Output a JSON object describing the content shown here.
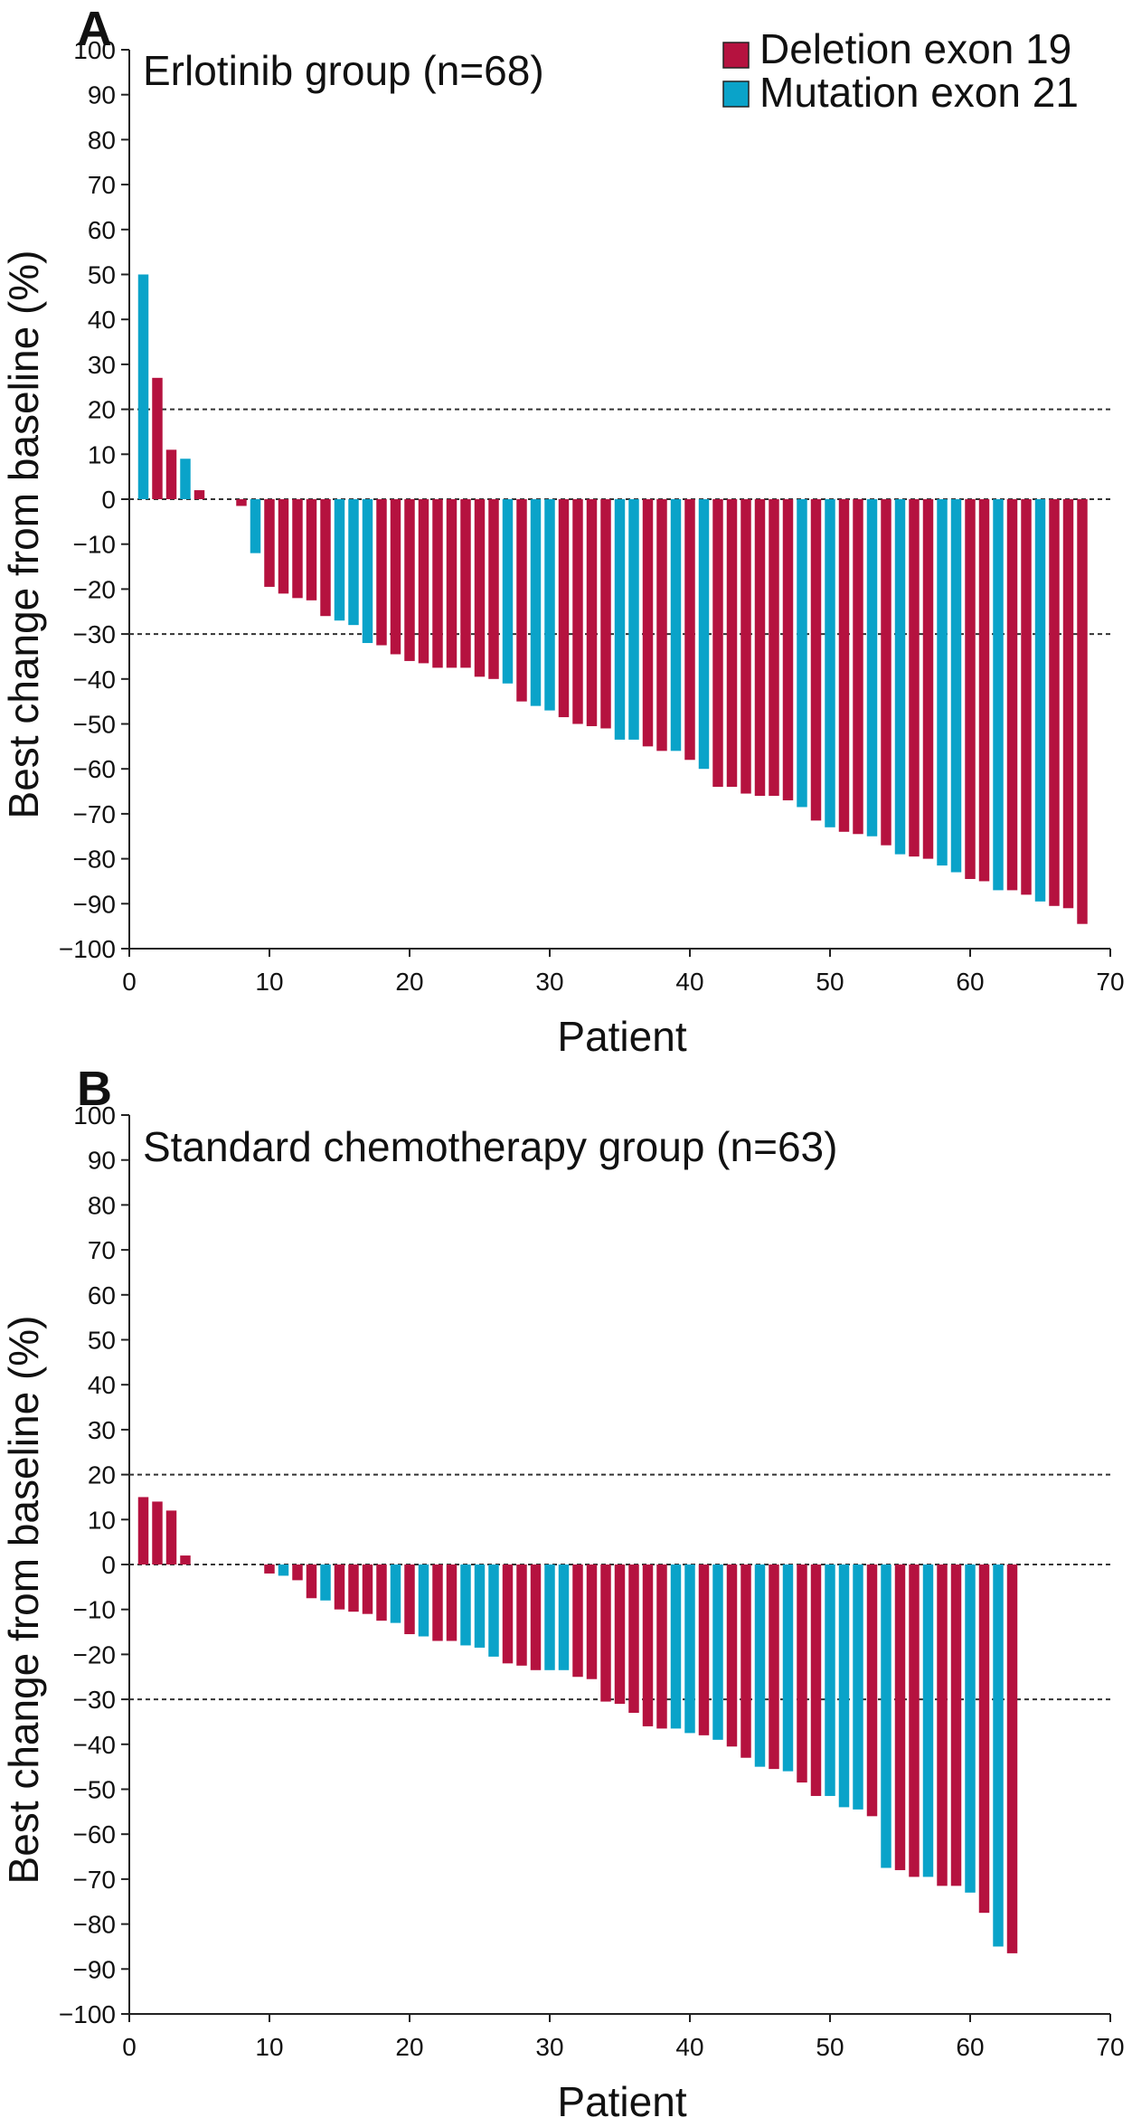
{
  "colors": {
    "deletion": "#b5123f",
    "mutation": "#0aa3c9",
    "axis": "#222222",
    "ref_line": "#333333"
  },
  "legend": {
    "position": "top-right",
    "items": [
      {
        "label": "Deletion exon 19",
        "color": "#b5123f"
      },
      {
        "label": "Mutation exon 21",
        "color": "#0aa3c9"
      }
    ]
  },
  "chart_data": [
    {
      "type": "bar",
      "panel_label": "A",
      "title": "Erlotinib group (n=68)",
      "xlabel": "Patient",
      "ylabel": "Best change from baseline (%)",
      "xlim": [
        0,
        70
      ],
      "ylim": [
        -100,
        100
      ],
      "xticks": [
        0,
        10,
        20,
        30,
        40,
        50,
        60,
        70
      ],
      "xtick_labels": [
        "0",
        "10",
        "20",
        "30",
        "40",
        "50",
        "60",
        "70"
      ],
      "yticks": [
        100,
        90,
        80,
        70,
        60,
        50,
        40,
        30,
        20,
        10,
        0,
        -10,
        -20,
        -30,
        -40,
        -50,
        -60,
        -70,
        -80,
        -90,
        -100
      ],
      "ytick_labels": [
        "100",
        "90",
        "80",
        "70",
        "60",
        "50",
        "40",
        "30",
        "20",
        "10",
        "0",
        "-10",
        "-20",
        "-30",
        "-40",
        "-50",
        "-60",
        "-70",
        "-80",
        "-90",
        "-100"
      ],
      "reference_lines": [
        20,
        0,
        -30
      ],
      "grid": false,
      "x": [
        1,
        2,
        3,
        4,
        5,
        6,
        7,
        8,
        9,
        10,
        11,
        12,
        13,
        14,
        15,
        16,
        17,
        18,
        19,
        20,
        21,
        22,
        23,
        24,
        25,
        26,
        27,
        28,
        29,
        30,
        31,
        32,
        33,
        34,
        35,
        36,
        37,
        38,
        39,
        40,
        41,
        42,
        43,
        44,
        45,
        46,
        47,
        48,
        49,
        50,
        51,
        52,
        53,
        54,
        55,
        56,
        57,
        58,
        59,
        60,
        61,
        62,
        63,
        64,
        65,
        66,
        67,
        68
      ],
      "values": [
        50,
        27,
        11,
        9,
        2,
        0,
        0,
        -1.5,
        -12,
        -19.5,
        -21,
        -22,
        -22.5,
        -26,
        -27,
        -28,
        -32,
        -32.5,
        -34.5,
        -36,
        -36.5,
        -37.5,
        -37.5,
        -37.5,
        -39.5,
        -40,
        -41,
        -45,
        -46,
        -47,
        -48.5,
        -50,
        -50.5,
        -51,
        -53.5,
        -53.5,
        -55,
        -56,
        -56,
        -58,
        -60,
        -64,
        -64,
        -65.5,
        -66,
        -66,
        -67,
        -68.5,
        -71.5,
        -73,
        -74,
        -74.5,
        -75,
        -77,
        -79,
        -79.5,
        -80,
        -81.5,
        -83,
        -84.5,
        -85,
        -87,
        -87,
        -88,
        -89.5,
        -90.5,
        -91,
        -94.5
      ],
      "groups": [
        "M",
        "D",
        "D",
        "M",
        "D",
        "D",
        "D",
        "D",
        "M",
        "D",
        "D",
        "D",
        "D",
        "D",
        "M",
        "M",
        "M",
        "D",
        "D",
        "D",
        "D",
        "D",
        "D",
        "D",
        "D",
        "D",
        "M",
        "D",
        "M",
        "M",
        "D",
        "D",
        "D",
        "D",
        "M",
        "M",
        "D",
        "D",
        "M",
        "D",
        "M",
        "D",
        "D",
        "D",
        "D",
        "D",
        "D",
        "M",
        "D",
        "M",
        "D",
        "D",
        "M",
        "D",
        "M",
        "D",
        "D",
        "M",
        "M",
        "D",
        "D",
        "M",
        "D",
        "D",
        "M",
        "D",
        "D",
        "D"
      ]
    },
    {
      "type": "bar",
      "panel_label": "B",
      "title": "Standard chemotherapy group (n=63)",
      "xlabel": "Patient",
      "ylabel": "Best change from baseline (%)",
      "xlim": [
        0,
        70
      ],
      "ylim": [
        -100,
        100
      ],
      "xticks": [
        0,
        10,
        20,
        30,
        40,
        50,
        60,
        70
      ],
      "xtick_labels": [
        "0",
        "10",
        "20",
        "30",
        "40",
        "50",
        "60",
        "70"
      ],
      "yticks": [
        100,
        90,
        80,
        70,
        60,
        50,
        40,
        30,
        20,
        10,
        0,
        -10,
        -20,
        -30,
        -40,
        -50,
        -60,
        -70,
        -80,
        -90,
        -100
      ],
      "ytick_labels": [
        "100",
        "90",
        "80",
        "70",
        "60",
        "50",
        "40",
        "30",
        "20",
        "10",
        "0",
        "-10",
        "-20",
        "-30",
        "-40",
        "-50",
        "-60",
        "-70",
        "-80",
        "-90",
        "-100"
      ],
      "reference_lines": [
        20,
        0,
        -30
      ],
      "grid": false,
      "x": [
        1,
        2,
        3,
        4,
        5,
        6,
        7,
        8,
        9,
        10,
        11,
        12,
        13,
        14,
        15,
        16,
        17,
        18,
        19,
        20,
        21,
        22,
        23,
        24,
        25,
        26,
        27,
        28,
        29,
        30,
        31,
        32,
        33,
        34,
        35,
        36,
        37,
        38,
        39,
        40,
        41,
        42,
        43,
        44,
        45,
        46,
        47,
        48,
        49,
        50,
        51,
        52,
        53,
        54,
        55,
        56,
        57,
        58,
        59,
        60,
        61,
        62,
        63
      ],
      "values": [
        15,
        14,
        12,
        2,
        0,
        0,
        0,
        0,
        0,
        -2,
        -2.5,
        -3.5,
        -7.5,
        -8,
        -10,
        -10.5,
        -11,
        -12.5,
        -13,
        -15.5,
        -16,
        -17,
        -17,
        -18,
        -18.5,
        -20.5,
        -22,
        -22.5,
        -23.5,
        -23.5,
        -23.5,
        -25,
        -25.5,
        -30.5,
        -31,
        -33,
        -36,
        -36.5,
        -36.5,
        -37.5,
        -38,
        -39,
        -40.5,
        -43,
        -45,
        -45.5,
        -46,
        -48.5,
        -51.5,
        -51.5,
        -54,
        -54.5,
        -56,
        -67.5,
        -68,
        -69.5,
        -69.5,
        -71.5,
        -71.5,
        -73,
        -77.5,
        -85,
        -86.5
      ],
      "groups": [
        "D",
        "D",
        "D",
        "D",
        "D",
        "D",
        "D",
        "D",
        "D",
        "D",
        "M",
        "D",
        "D",
        "M",
        "D",
        "D",
        "D",
        "D",
        "M",
        "D",
        "M",
        "D",
        "D",
        "M",
        "M",
        "M",
        "D",
        "D",
        "D",
        "M",
        "M",
        "D",
        "D",
        "D",
        "D",
        "D",
        "D",
        "D",
        "M",
        "M",
        "D",
        "M",
        "D",
        "D",
        "M",
        "D",
        "M",
        "D",
        "D",
        "M",
        "M",
        "M",
        "D",
        "M",
        "D",
        "D",
        "M",
        "D",
        "D",
        "M",
        "D",
        "M",
        "D"
      ]
    }
  ]
}
